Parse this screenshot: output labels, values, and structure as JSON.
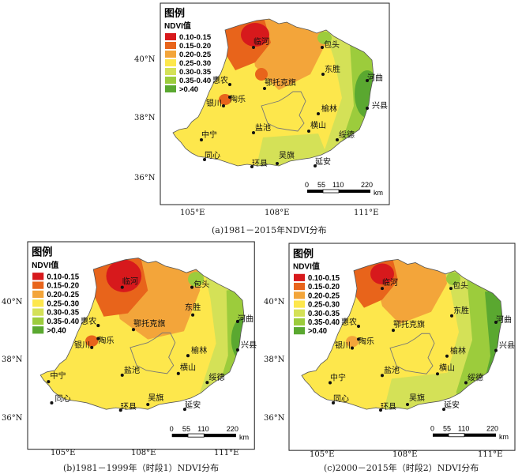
{
  "maps": [
    {
      "id": "a",
      "caption": "(a)1981－2015年NDVI分布",
      "x_ticks": [
        "105°E",
        "108°E",
        "111°E"
      ],
      "y_ticks": [
        "40°N",
        "38°N",
        "36°N"
      ]
    },
    {
      "id": "b",
      "caption": "(b)1981－1999年（时段1）NDVI分布",
      "x_ticks": [
        "105°E",
        "108°E",
        "111°E"
      ],
      "y_ticks": [
        "40°N",
        "38°N",
        "36°N"
      ]
    },
    {
      "id": "c",
      "caption": "(c)2000－2015年（时段2）NDVI分布",
      "x_ticks": [
        "105°E",
        "108°E",
        "111°E"
      ],
      "y_ticks": [
        "40°N",
        "38°N",
        "36°N"
      ]
    }
  ],
  "legend": {
    "title": "图例",
    "subtitle": "NDVI值",
    "classes": [
      {
        "label": "0.10-0.15",
        "color": "#d7191c"
      },
      {
        "label": "0.15-0.20",
        "color": "#e8641b"
      },
      {
        "label": "0.20-0.25",
        "color": "#f3a53a"
      },
      {
        "label": "0.25-0.30",
        "color": "#fde74c"
      },
      {
        "label": "0.30-0.35",
        "color": "#d4e157"
      },
      {
        "label": "0.35-0.40",
        "color": "#9ccc3c"
      },
      {
        "label": ">0.40",
        "color": "#5aa830"
      }
    ]
  },
  "scale_bar": {
    "ticks": [
      "0",
      "55",
      "110",
      "220"
    ],
    "unit": "km"
  },
  "cities": [
    "临河",
    "包头",
    "东胜",
    "惠农",
    "鄂托克旗",
    "河曲",
    "陶乐",
    "银川",
    "兴县",
    "榆林",
    "中宁",
    "盐池",
    "横山",
    "绥德",
    "同心",
    "环县",
    "吴旗",
    "延安"
  ],
  "colors": {
    "frame": "#222222",
    "boundary": "#777777",
    "point": "#111111"
  }
}
